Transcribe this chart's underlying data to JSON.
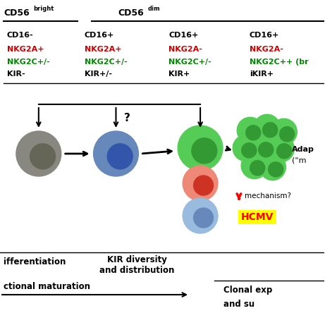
{
  "background": "#ffffff",
  "col1_lines": [
    "CD16-",
    "NKG2A+",
    "NKG2C+/-",
    "KIR-"
  ],
  "col1_colors": [
    "#000000",
    "#cc0000",
    "#008800",
    "#000000"
  ],
  "col2_lines": [
    "CD16+",
    "NKG2A+",
    "NKG2C+/-",
    "KIR+/-"
  ],
  "col2_colors": [
    "#000000",
    "#cc0000",
    "#008800",
    "#000000"
  ],
  "col3_lines": [
    "CD16+",
    "NKG2A-",
    "NKG2C+/-",
    "KIR+"
  ],
  "col3_colors": [
    "#000000",
    "#cc0000",
    "#008800",
    "#000000"
  ],
  "col4_lines": [
    "CD16+",
    "NKG2A-",
    "NKG2C++ (br",
    "iKIR+"
  ],
  "col4_colors": [
    "#000000",
    "#cc0000",
    "#008800",
    "#000000"
  ],
  "gray_outer": "#888880",
  "gray_inner": "#666658",
  "blue_outer": "#6688bb",
  "blue_inner": "#3355aa",
  "green_outer": "#55cc55",
  "green_inner": "#339933",
  "red_outer": "#ee8877",
  "red_inner": "#cc3322",
  "lb_outer": "#99bbdd",
  "lb_inner": "#6688bb",
  "cluster_green": "#55cc55",
  "cluster_dark": "#339933"
}
